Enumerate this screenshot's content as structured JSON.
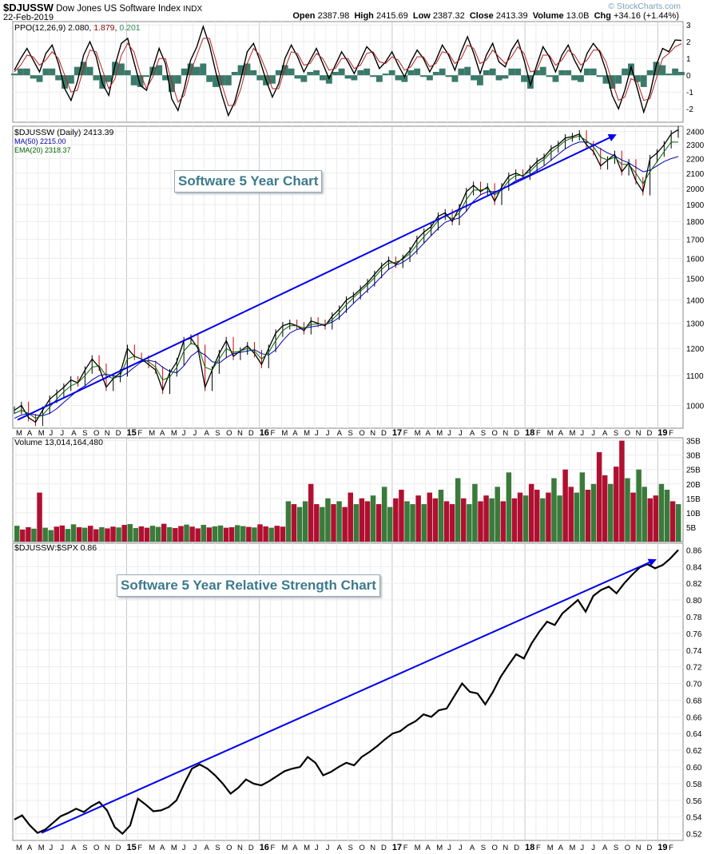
{
  "header": {
    "symbol": "$DJUSSW",
    "name": "Dow Jones US Software Index",
    "exchange": "INDX",
    "date": "22-Feb-2019",
    "open_label": "Open",
    "open": "2387.98",
    "high_label": "High",
    "high": "2415.69",
    "low_label": "Low",
    "low": "2387.32",
    "close_label": "Close",
    "close": "2413.39",
    "volume_label": "Volume",
    "volume": "13.0B",
    "chg_label": "Chg",
    "chg": "+34.16 (+1.44%)",
    "watermark": "© StockCharts.com",
    "watermark_color": "#7aa0b8"
  },
  "annotations": {
    "price_callout": "Software 5 Year Chart",
    "rs_callout": "Software 5 Year Relative Strength Chart",
    "arrow_color": "#0000ee"
  },
  "chart_data": [
    {
      "type": "line",
      "panel": "ppo",
      "label_prefix": "PPO(12,26,9)",
      "label_values": [
        "2.080",
        "1.879",
        "0.201"
      ],
      "label_colors": [
        "#000000",
        "#8b0000",
        "#2e8b57"
      ],
      "ylim": [
        -2.8,
        3.2
      ],
      "yticks": [
        -2,
        -1,
        0,
        1,
        2,
        3
      ],
      "series": [
        {
          "name": "PPO",
          "color": "#000000",
          "values": [
            0.3,
            1.0,
            1.6,
            0.9,
            0.2,
            1.3,
            1.8,
            0.7,
            -0.8,
            -1.5,
            -0.4,
            1.2,
            2.0,
            1.1,
            -0.5,
            -1.2,
            0.6,
            1.9,
            2.2,
            0.8,
            -0.6,
            -0.9,
            0.4,
            1.6,
            0.7,
            -1.4,
            -2.1,
            -0.8,
            0.9,
            1.7,
            2.9,
            1.8,
            0.2,
            -1.2,
            -2.4,
            -1.6,
            -0.2,
            1.4,
            1.9,
            0.9,
            -0.3,
            -1.3,
            -0.5,
            1.0,
            1.8,
            1.1,
            0.2,
            0.9,
            1.6,
            0.7,
            -0.2,
            0.6,
            1.4,
            0.8,
            0.1,
            0.9,
            1.7,
            1.3,
            0.4,
            0.8,
            1.4,
            0.6,
            -0.1,
            0.8,
            1.5,
            1.0,
            0.2,
            0.9,
            1.8,
            1.2,
            0.3,
            1.4,
            2.3,
            1.3,
            0.1,
            1.2,
            1.9,
            0.8,
            0.5,
            1.5,
            2.1,
            0.9,
            -0.6,
            0.6,
            1.7,
            1.1,
            0.2,
            1.2,
            1.8,
            0.9,
            0.2,
            1.3,
            1.9,
            1.4,
            0.3,
            -1.2,
            -2.0,
            -0.9,
            0.5,
            -0.8,
            -2.2,
            -1.1,
            0.6,
            1.6,
            1.4,
            2.1,
            2.08
          ]
        },
        {
          "name": "Signal",
          "color": "#b22222",
          "values": [
            0.2,
            0.6,
            1.2,
            1.1,
            0.6,
            0.9,
            1.4,
            1.0,
            0.0,
            -1.0,
            -0.9,
            0.4,
            1.5,
            1.4,
            0.3,
            -0.8,
            -0.2,
            1.2,
            1.9,
            1.4,
            0.1,
            -0.8,
            -0.1,
            1.0,
            1.0,
            -0.4,
            -1.6,
            -1.2,
            0.2,
            1.2,
            2.2,
            2.2,
            0.9,
            -0.6,
            -1.8,
            -1.8,
            -0.8,
            0.7,
            1.6,
            1.2,
            0.3,
            -0.8,
            -0.8,
            0.4,
            1.4,
            1.3,
            0.6,
            0.7,
            1.3,
            1.0,
            0.3,
            0.4,
            1.0,
            1.0,
            0.4,
            0.6,
            1.3,
            1.4,
            0.8,
            0.7,
            1.1,
            0.9,
            0.3,
            0.5,
            1.1,
            1.1,
            0.5,
            0.7,
            1.4,
            1.3,
            0.7,
            1.0,
            1.8,
            1.6,
            0.7,
            0.9,
            1.5,
            1.1,
            0.7,
            1.1,
            1.7,
            1.3,
            0.2,
            0.3,
            1.2,
            1.2,
            0.6,
            0.9,
            1.5,
            1.2,
            0.6,
            0.9,
            1.5,
            1.5,
            0.8,
            -0.4,
            -1.5,
            -1.3,
            -0.2,
            -0.4,
            -1.5,
            -1.4,
            -0.2,
            1.0,
            1.3,
            1.7,
            1.879
          ]
        }
      ]
    },
    {
      "type": "line",
      "panel": "price",
      "title": "$DJUSSW (Daily) 2413.39",
      "legend": [
        {
          "name": "MA(50) 2215.00",
          "color": "#0000aa"
        },
        {
          "name": "EMA(20) 2318.37",
          "color": "#006400"
        }
      ],
      "x_ticks": [
        "M",
        "A",
        "M",
        "J",
        "J",
        "A",
        "S",
        "O",
        "N",
        "D",
        "15",
        "F",
        "M",
        "A",
        "M",
        "J",
        "J",
        "A",
        "S",
        "O",
        "N",
        "D",
        "16",
        "F",
        "M",
        "A",
        "M",
        "J",
        "J",
        "A",
        "S",
        "O",
        "N",
        "D",
        "17",
        "F",
        "M",
        "A",
        "M",
        "J",
        "J",
        "A",
        "S",
        "O",
        "N",
        "D",
        "18",
        "F",
        "M",
        "A",
        "M",
        "J",
        "J",
        "A",
        "S",
        "O",
        "N",
        "D",
        "19",
        "F"
      ],
      "ylim": [
        930,
        2440
      ],
      "log_scale": true,
      "yticks": [
        1000,
        1100,
        1200,
        1300,
        1400,
        1500,
        1600,
        1700,
        1800,
        1900,
        2000,
        2100,
        2200,
        2300,
        2400
      ],
      "series": [
        {
          "name": "Close",
          "color": "#000000",
          "values": [
            985,
            1000,
            962,
            948,
            985,
            1020,
            1040,
            1060,
            1085,
            1075,
            1120,
            1160,
            1130,
            1060,
            1090,
            1110,
            1200,
            1170,
            1160,
            1140,
            1120,
            1050,
            1110,
            1150,
            1230,
            1240,
            1200,
            1060,
            1120,
            1180,
            1230,
            1170,
            1190,
            1210,
            1180,
            1140,
            1200,
            1260,
            1290,
            1300,
            1290,
            1270,
            1310,
            1300,
            1290,
            1330,
            1360,
            1400,
            1420,
            1450,
            1480,
            1520,
            1560,
            1590,
            1570,
            1600,
            1640,
            1700,
            1740,
            1770,
            1830,
            1850,
            1800,
            1880,
            1980,
            2020,
            1980,
            2010,
            1920,
            2010,
            2080,
            2100,
            2080,
            2130,
            2180,
            2210,
            2270,
            2300,
            2350,
            2360,
            2380,
            2300,
            2250,
            2150,
            2190,
            2230,
            2110,
            2170,
            2050,
            1980,
            2200,
            2240,
            2300,
            2380,
            2413.39
          ]
        },
        {
          "name": "MA(50)",
          "color": "#0000aa",
          "values": [
            960,
            970,
            975,
            970,
            968,
            975,
            990,
            1010,
            1030,
            1050,
            1065,
            1085,
            1100,
            1105,
            1100,
            1095,
            1110,
            1130,
            1150,
            1155,
            1150,
            1130,
            1115,
            1110,
            1135,
            1170,
            1190,
            1175,
            1150,
            1145,
            1165,
            1180,
            1185,
            1190,
            1195,
            1180,
            1175,
            1195,
            1230,
            1260,
            1275,
            1280,
            1285,
            1290,
            1295,
            1305,
            1325,
            1355,
            1385,
            1415,
            1445,
            1475,
            1510,
            1545,
            1565,
            1580,
            1605,
            1640,
            1680,
            1720,
            1760,
            1795,
            1810,
            1820,
            1860,
            1920,
            1960,
            1980,
            1980,
            1990,
            2020,
            2050,
            2070,
            2090,
            2120,
            2150,
            2190,
            2230,
            2270,
            2300,
            2320,
            2320,
            2300,
            2270,
            2240,
            2220,
            2190,
            2170,
            2140,
            2110,
            2120,
            2150,
            2180,
            2200,
            2215
          ]
        },
        {
          "name": "EMA(20)",
          "color": "#006400",
          "values": [
            975,
            985,
            975,
            960,
            970,
            995,
            1020,
            1045,
            1065,
            1075,
            1100,
            1130,
            1135,
            1100,
            1090,
            1100,
            1160,
            1170,
            1160,
            1150,
            1130,
            1085,
            1095,
            1130,
            1190,
            1220,
            1210,
            1130,
            1120,
            1160,
            1200,
            1185,
            1190,
            1200,
            1190,
            1160,
            1185,
            1230,
            1270,
            1290,
            1290,
            1280,
            1295,
            1298,
            1295,
            1315,
            1345,
            1380,
            1410,
            1440,
            1470,
            1505,
            1545,
            1575,
            1580,
            1595,
            1625,
            1670,
            1715,
            1755,
            1805,
            1835,
            1815,
            1850,
            1930,
            1990,
            1990,
            2000,
            1960,
            1990,
            2050,
            2085,
            2085,
            2110,
            2160,
            2195,
            2245,
            2285,
            2330,
            2350,
            2365,
            2330,
            2285,
            2210,
            2190,
            2210,
            2160,
            2160,
            2100,
            2030,
            2110,
            2180,
            2250,
            2320,
            2318.37
          ]
        }
      ]
    },
    {
      "type": "bar",
      "panel": "volume",
      "title": "Volume 13,014,164,480",
      "ylim": [
        0,
        36
      ],
      "yticks_labels": [
        "5B",
        "10B",
        "15B",
        "20B",
        "25B",
        "30B",
        "35B"
      ],
      "yticks": [
        5,
        10,
        15,
        20,
        25,
        30,
        35
      ],
      "up_color": "#3a7a3a",
      "down_color": "#b01030",
      "values": [
        5.5,
        4.2,
        5.0,
        4.5,
        17,
        4.8,
        4.0,
        5.2,
        5.6,
        4.4,
        6.0,
        5.0,
        4.8,
        5.5,
        4.3,
        5.0,
        4.6,
        5.2,
        4.9,
        5.8,
        6.1,
        4.7,
        5.3,
        4.8,
        5.5,
        5.1,
        6.2,
        5.0,
        4.7,
        5.4,
        5.9,
        5.2,
        4.6,
        5.8,
        4.9,
        5.3,
        5.6,
        4.8,
        5.0,
        5.7,
        5.4,
        5.1,
        4.9,
        6.0,
        5.3,
        4.8,
        5.5,
        5.2,
        14,
        13,
        12,
        14,
        20,
        13,
        12,
        15,
        13,
        14,
        12,
        17,
        13,
        15,
        14,
        16,
        13,
        19,
        12,
        15,
        18,
        14,
        13,
        16,
        13,
        17,
        15,
        18,
        14,
        13,
        22,
        15,
        13,
        20,
        14,
        16,
        15,
        19,
        14,
        24,
        15,
        17,
        16,
        20,
        18,
        15,
        17,
        22,
        16,
        25,
        19,
        17,
        24,
        18,
        20,
        31,
        23,
        20,
        26,
        35,
        22,
        17,
        25,
        19,
        15,
        16,
        20,
        18,
        14,
        13
      ]
    },
    {
      "type": "line",
      "panel": "relative_strength",
      "title": "$DJUSSW:$SPX 0.86",
      "ylim": [
        0.512,
        0.868
      ],
      "yticks": [
        0.52,
        0.54,
        0.56,
        0.58,
        0.6,
        0.62,
        0.64,
        0.66,
        0.68,
        0.7,
        0.72,
        0.74,
        0.76,
        0.78,
        0.8,
        0.82,
        0.84,
        0.86
      ],
      "series": [
        {
          "name": "$DJUSSW:$SPX",
          "color": "#000000",
          "values": [
            0.537,
            0.542,
            0.53,
            0.521,
            0.525,
            0.533,
            0.541,
            0.545,
            0.55,
            0.546,
            0.553,
            0.558,
            0.548,
            0.528,
            0.52,
            0.53,
            0.562,
            0.555,
            0.547,
            0.548,
            0.552,
            0.56,
            0.58,
            0.598,
            0.603,
            0.598,
            0.59,
            0.58,
            0.568,
            0.575,
            0.585,
            0.58,
            0.578,
            0.583,
            0.589,
            0.595,
            0.598,
            0.6,
            0.612,
            0.605,
            0.59,
            0.594,
            0.6,
            0.605,
            0.602,
            0.612,
            0.618,
            0.625,
            0.633,
            0.64,
            0.643,
            0.65,
            0.655,
            0.663,
            0.66,
            0.668,
            0.67,
            0.685,
            0.7,
            0.69,
            0.688,
            0.675,
            0.69,
            0.708,
            0.722,
            0.735,
            0.73,
            0.748,
            0.762,
            0.774,
            0.77,
            0.784,
            0.792,
            0.8,
            0.786,
            0.805,
            0.812,
            0.816,
            0.808,
            0.82,
            0.83,
            0.839,
            0.843,
            0.838,
            0.842,
            0.85,
            0.86
          ]
        }
      ]
    }
  ]
}
